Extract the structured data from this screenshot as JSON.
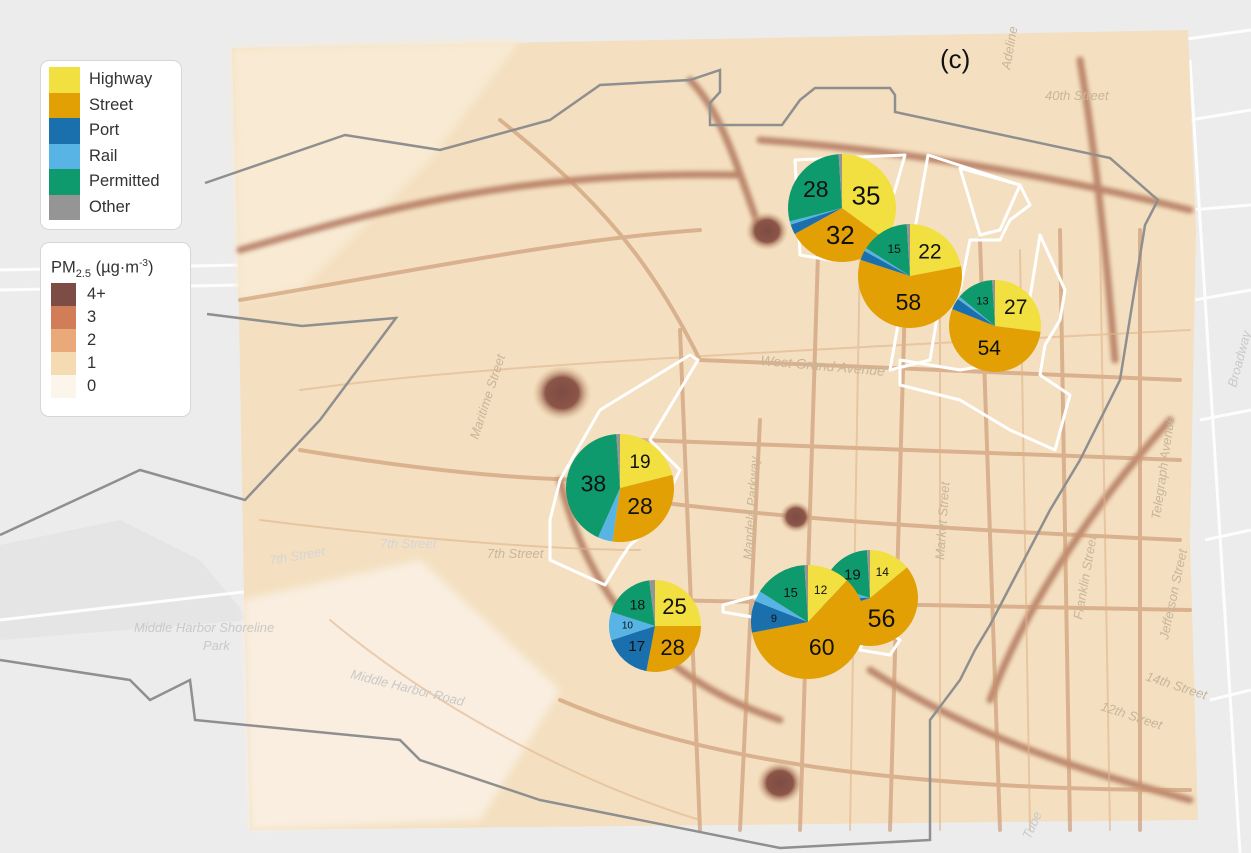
{
  "panel_label": "(c)",
  "legend_sources": {
    "items": [
      {
        "label": "Highway",
        "color": "#f1e040"
      },
      {
        "label": "Street",
        "color": "#e2a004"
      },
      {
        "label": "Port",
        "color": "#1a6fad"
      },
      {
        "label": "Rail",
        "color": "#59b4e6"
      },
      {
        "label": "Permitted",
        "color": "#0e9a6c"
      },
      {
        "label": "Other",
        "color": "#959595"
      }
    ]
  },
  "legend_pm": {
    "title_prefix": "PM",
    "title_sub": "2.5",
    "title_unit_open": " (µg·m",
    "title_sup": "-3",
    "title_unit_close": ")",
    "items": [
      {
        "label": "4+",
        "color": "#7d4c44"
      },
      {
        "label": "3",
        "color": "#d17d57"
      },
      {
        "label": "2",
        "color": "#eaa979"
      },
      {
        "label": "1",
        "color": "#f4dbb2"
      },
      {
        "label": "0",
        "color": "#fbf5ec"
      }
    ]
  },
  "map_labels": [
    {
      "text": "Adeline"
    },
    {
      "text": "40th Street"
    },
    {
      "text": "West Grand Avenue"
    },
    {
      "text": "Mandela Parkway"
    },
    {
      "text": "Market Street"
    },
    {
      "text": "7th Street"
    },
    {
      "text": "7th Street"
    },
    {
      "text": "7th Street"
    },
    {
      "text": "Middle Harbor Shoreline"
    },
    {
      "text": "Park"
    },
    {
      "text": "Middle Harbor Road"
    },
    {
      "text": "Broadway"
    },
    {
      "text": "Telegraph Avenue"
    },
    {
      "text": "Franklin Street"
    },
    {
      "text": "Jefferson Street"
    },
    {
      "text": "14th Street"
    },
    {
      "text": "12th Street"
    },
    {
      "text": "Maritime Street"
    },
    {
      "text": "Tube"
    }
  ],
  "pie_charts": [
    {
      "id": "pie-a",
      "slices": [
        {
          "source": "Highway",
          "value": 35,
          "label": "35",
          "color": "#f1e040"
        },
        {
          "source": "Street",
          "value": 32,
          "label": "32",
          "color": "#e2a004"
        },
        {
          "source": "Port",
          "value": 3,
          "label": "",
          "color": "#1a6fad"
        },
        {
          "source": "Rail",
          "value": 1,
          "label": "",
          "color": "#59b4e6"
        },
        {
          "source": "Permitted",
          "value": 28,
          "label": "28",
          "color": "#0e9a6c"
        },
        {
          "source": "Other",
          "value": 1,
          "label": "",
          "color": "#959595"
        }
      ]
    },
    {
      "id": "pie-b",
      "slices": [
        {
          "source": "Highway",
          "value": 22,
          "label": "22",
          "color": "#f1e040"
        },
        {
          "source": "Street",
          "value": 58,
          "label": "58",
          "color": "#e2a004"
        },
        {
          "source": "Port",
          "value": 3,
          "label": "",
          "color": "#1a6fad"
        },
        {
          "source": "Rail",
          "value": 1,
          "label": "",
          "color": "#59b4e6"
        },
        {
          "source": "Permitted",
          "value": 15,
          "label": "15",
          "color": "#0e9a6c"
        },
        {
          "source": "Other",
          "value": 1,
          "label": "",
          "color": "#959595"
        }
      ]
    },
    {
      "id": "pie-c",
      "slices": [
        {
          "source": "Highway",
          "value": 27,
          "label": "27",
          "color": "#f1e040"
        },
        {
          "source": "Street",
          "value": 54,
          "label": "54",
          "color": "#e2a004"
        },
        {
          "source": "Port",
          "value": 4,
          "label": "",
          "color": "#1a6fad"
        },
        {
          "source": "Rail",
          "value": 1,
          "label": "",
          "color": "#59b4e6"
        },
        {
          "source": "Permitted",
          "value": 13,
          "label": "13",
          "color": "#0e9a6c"
        },
        {
          "source": "Other",
          "value": 1,
          "label": "",
          "color": "#959595"
        }
      ]
    },
    {
      "id": "pie-d",
      "slices": [
        {
          "source": "Highway",
          "value": 19,
          "label": "19",
          "color": "#f1e040"
        },
        {
          "source": "Street",
          "value": 28,
          "label": "28",
          "color": "#e2a004"
        },
        {
          "source": "Port",
          "value": 0,
          "label": "",
          "color": "#1a6fad"
        },
        {
          "source": "Rail",
          "value": 4,
          "label": "",
          "color": "#59b4e6"
        },
        {
          "source": "Permitted",
          "value": 38,
          "label": "38",
          "color": "#0e9a6c"
        },
        {
          "source": "Other",
          "value": 1,
          "label": "",
          "color": "#959595"
        }
      ]
    },
    {
      "id": "pie-e",
      "slices": [
        {
          "source": "Highway",
          "value": 25,
          "label": "25",
          "color": "#f1e040"
        },
        {
          "source": "Street",
          "value": 28,
          "label": "28",
          "color": "#e2a004"
        },
        {
          "source": "Port",
          "value": 17,
          "label": "17",
          "color": "#1a6fad"
        },
        {
          "source": "Rail",
          "value": 10,
          "label": "10",
          "color": "#59b4e6"
        },
        {
          "source": "Permitted",
          "value": 18,
          "label": "18",
          "color": "#0e9a6c"
        },
        {
          "source": "Other",
          "value": 2,
          "label": "",
          "color": "#959595"
        }
      ]
    },
    {
      "id": "pie-f",
      "slices": [
        {
          "source": "Highway",
          "value": 14,
          "label": "14",
          "color": "#f1e040"
        },
        {
          "source": "Street",
          "value": 56,
          "label": "56",
          "color": "#e2a004"
        },
        {
          "source": "Port",
          "value": 5,
          "label": "",
          "color": "#1a6fad"
        },
        {
          "source": "Rail",
          "value": 5,
          "label": "",
          "color": "#59b4e6"
        },
        {
          "source": "Permitted",
          "value": 19,
          "label": "19",
          "color": "#0e9a6c"
        },
        {
          "source": "Other",
          "value": 1,
          "label": "",
          "color": "#959595"
        }
      ]
    },
    {
      "id": "pie-g",
      "slices": [
        {
          "source": "Highway",
          "value": 12,
          "label": "12",
          "color": "#f1e040"
        },
        {
          "source": "Street",
          "value": 60,
          "label": "60",
          "color": "#e2a004"
        },
        {
          "source": "Port",
          "value": 9,
          "label": "9",
          "color": "#1a6fad"
        },
        {
          "source": "Rail",
          "value": 3,
          "label": "",
          "color": "#59b4e6"
        },
        {
          "source": "Permitted",
          "value": 15,
          "label": "15",
          "color": "#0e9a6c"
        },
        {
          "source": "Other",
          "value": 1,
          "label": "",
          "color": "#959595"
        }
      ]
    }
  ]
}
